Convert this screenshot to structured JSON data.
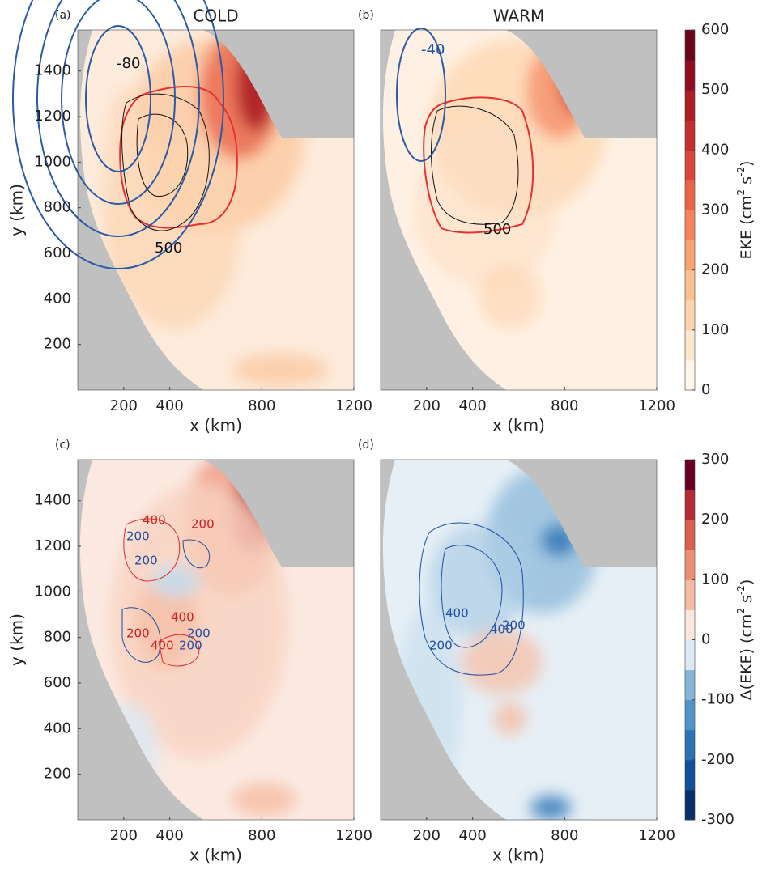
{
  "chart_data": [
    {
      "type": "contour",
      "panel": "(a)",
      "title": "COLD",
      "xlabel": "x (km)",
      "ylabel": "y (km)",
      "xlim": [
        0,
        1200
      ],
      "ylim": [
        0,
        1580
      ],
      "xticks": [
        200,
        400,
        800,
        1200
      ],
      "yticks": [
        200,
        400,
        600,
        800,
        1000,
        1200,
        1400
      ],
      "contour_labels": [
        -80,
        500
      ]
    },
    {
      "type": "contour",
      "panel": "(b)",
      "title": "WARM",
      "xlabel": "x (km)",
      "xlim": [
        0,
        1200
      ],
      "ylim": [
        0,
        1580
      ],
      "xticks": [
        200,
        400,
        800,
        1200
      ],
      "contour_labels": [
        -40,
        500
      ],
      "colorbar": {
        "label": [
          "EKE (cm",
          "2",
          " s",
          "-2",
          ")"
        ],
        "lim": [
          0,
          600
        ],
        "ticks": [
          0,
          100,
          200,
          300,
          400,
          500,
          600
        ],
        "colors": [
          "#fff5eb",
          "#fde6cf",
          "#fdd4ad",
          "#fcbf8e",
          "#f9a373",
          "#f4845c",
          "#e9654a",
          "#d9473a",
          "#c62f2f",
          "#ac1d26",
          "#8f0d20",
          "#6b0519"
        ]
      }
    },
    {
      "type": "contour",
      "panel": "(c)",
      "xlabel": "x (km)",
      "ylabel": "y (km)",
      "xlim": [
        0,
        1200
      ],
      "ylim": [
        0,
        1580
      ],
      "xticks": [
        200,
        400,
        800,
        1200
      ],
      "yticks": [
        200,
        400,
        600,
        800,
        1000,
        1200,
        1400
      ],
      "contour_labels": [
        400,
        200,
        200,
        200,
        400,
        200,
        200,
        200,
        400
      ]
    },
    {
      "type": "contour",
      "panel": "(d)",
      "xlabel": "x (km)",
      "xlim": [
        0,
        1200
      ],
      "ylim": [
        0,
        1580
      ],
      "xticks": [
        200,
        400,
        800,
        1200
      ],
      "contour_labels": [
        200,
        400,
        400,
        200
      ],
      "colorbar": {
        "label": [
          "Δ(EKE) (cm",
          "2",
          " s",
          "-2",
          ")"
        ],
        "lim": [
          -300,
          300
        ],
        "ticks": [
          -300,
          -200,
          -100,
          0,
          100,
          200,
          300
        ],
        "colors": [
          "#08306b",
          "#10509a",
          "#2b73b5",
          "#5293c7",
          "#85b5d8",
          "#dce9f3",
          "#fbe7de",
          "#f6bca3",
          "#ec8f72",
          "#d8604d",
          "#b52b35",
          "#67001f"
        ]
      }
    }
  ]
}
